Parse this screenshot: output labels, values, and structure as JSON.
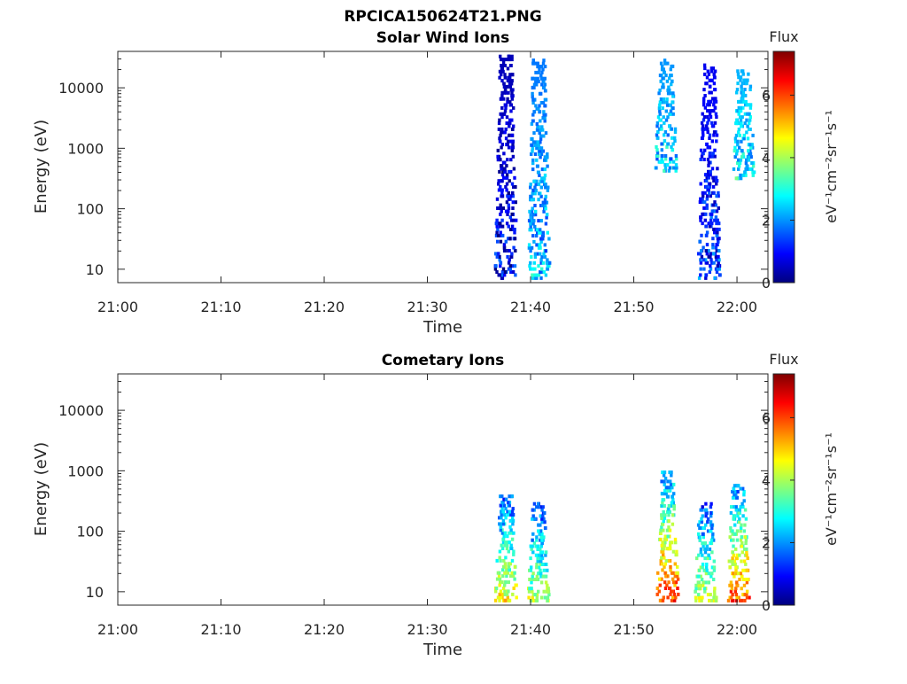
{
  "figure_title": "RPCICA150624T21.PNG",
  "colors": {
    "colormap": [
      "#00007f",
      "#0000ff",
      "#007fff",
      "#00ffff",
      "#7fff7f",
      "#ffff00",
      "#ff7f00",
      "#ff0000",
      "#7f0000"
    ]
  },
  "chart_data": [
    {
      "type": "heatmap",
      "title": "Solar Wind Ions",
      "xlabel": "Time",
      "ylabel": "Energy (eV)",
      "x_scale": "time",
      "y_scale": "log",
      "xlim": [
        "21:00",
        "22:03"
      ],
      "ylim": [
        6,
        40000
      ],
      "x_ticks": [
        "21:00",
        "21:10",
        "21:20",
        "21:30",
        "21:40",
        "21:50",
        "22:00"
      ],
      "y_ticks": [
        10,
        100,
        1000,
        10000
      ],
      "y_tick_labels": [
        "10",
        "100",
        "1000",
        "10000"
      ],
      "colorbar": {
        "title": "Flux",
        "label": "eV⁻¹cm⁻²sr⁻¹s⁻¹",
        "range": [
          0,
          7.4
        ],
        "ticks": [
          0,
          2,
          4,
          6
        ],
        "tick_labels": [
          "0",
          "2",
          "4",
          "6"
        ]
      },
      "clusters": [
        {
          "t": "21:37:30",
          "e_min": 6,
          "e_max": 35000,
          "flux": 0.4
        },
        {
          "t": "21:40:40",
          "e_min": 6,
          "e_max": 30000,
          "flux": 1.8
        },
        {
          "t": "21:53:00",
          "e_min": 400,
          "e_max": 30000,
          "flux": 2.0
        },
        {
          "t": "21:57:10",
          "e_min": 6,
          "e_max": 25000,
          "flux": 0.8
        },
        {
          "t": "22:00:30",
          "e_min": 300,
          "e_max": 20000,
          "flux": 2.2
        }
      ]
    },
    {
      "type": "heatmap",
      "title": "Cometary Ions",
      "xlabel": "Time",
      "ylabel": "Energy (eV)",
      "x_scale": "time",
      "y_scale": "log",
      "xlim": [
        "21:00",
        "22:03"
      ],
      "ylim": [
        6,
        40000
      ],
      "x_ticks": [
        "21:00",
        "21:10",
        "21:20",
        "21:30",
        "21:40",
        "21:50",
        "22:00"
      ],
      "y_ticks": [
        10,
        100,
        1000,
        10000
      ],
      "y_tick_labels": [
        "10",
        "100",
        "1000",
        "10000"
      ],
      "colorbar": {
        "title": "Flux",
        "label": "eV⁻¹cm⁻²sr⁻¹s⁻¹",
        "range": [
          0,
          7.4
        ],
        "ticks": [
          0,
          2,
          4,
          6
        ],
        "tick_labels": [
          "0",
          "2",
          "4",
          "6"
        ]
      },
      "clusters": [
        {
          "t": "21:37:30",
          "e_min": 6,
          "e_max": 400,
          "flux": 4.8
        },
        {
          "t": "21:40:40",
          "e_min": 6,
          "e_max": 300,
          "flux": 4.2
        },
        {
          "t": "21:53:10",
          "e_min": 6,
          "e_max": 1000,
          "flux": 6.2
        },
        {
          "t": "21:56:50",
          "e_min": 6,
          "e_max": 300,
          "flux": 4.4
        },
        {
          "t": "22:00:00",
          "e_min": 6,
          "e_max": 600,
          "flux": 6.0
        }
      ]
    }
  ]
}
